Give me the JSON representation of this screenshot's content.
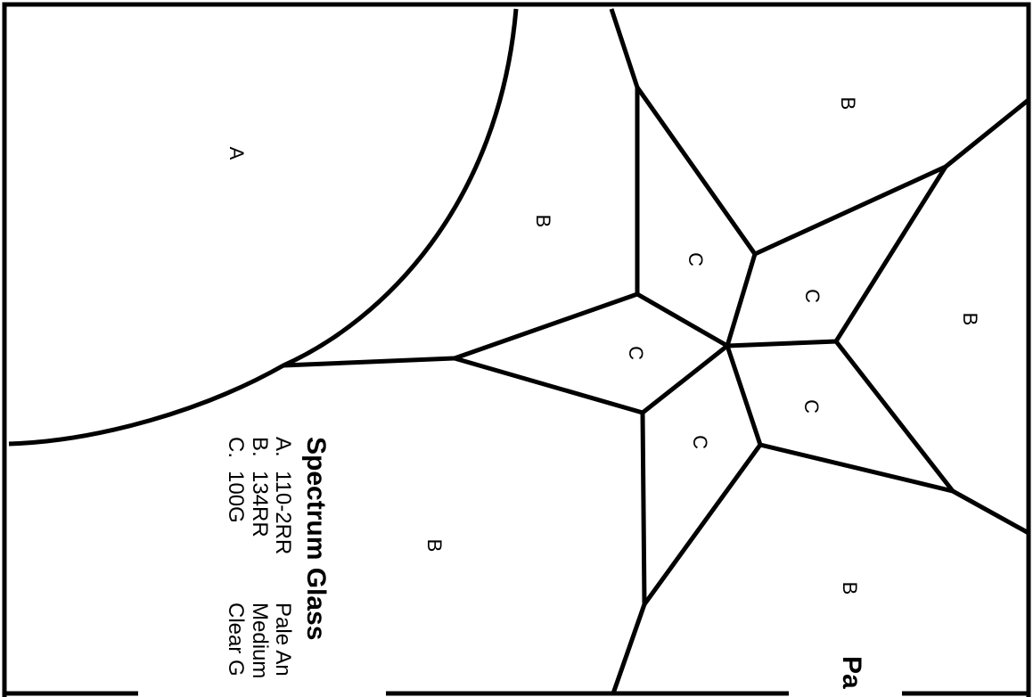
{
  "title": "Spectrum Glass",
  "legend": [
    {
      "key": "A.",
      "code": "110-2RR",
      "description": "Pale An"
    },
    {
      "key": "B.",
      "code": "134RR",
      "description": "Medium"
    },
    {
      "key": "C.",
      "code": "100G",
      "description": "Clear G"
    }
  ],
  "corner_title": "Pa",
  "region_labels": {
    "a_left": "A",
    "b_upper_left": "B",
    "b_top_right": "B",
    "b_right": "B",
    "b_bottom_right": "B",
    "b_lower_left": "B",
    "c_north": "C",
    "c_northeast": "C",
    "c_west": "C",
    "c_south": "C",
    "c_southeast": "C"
  }
}
